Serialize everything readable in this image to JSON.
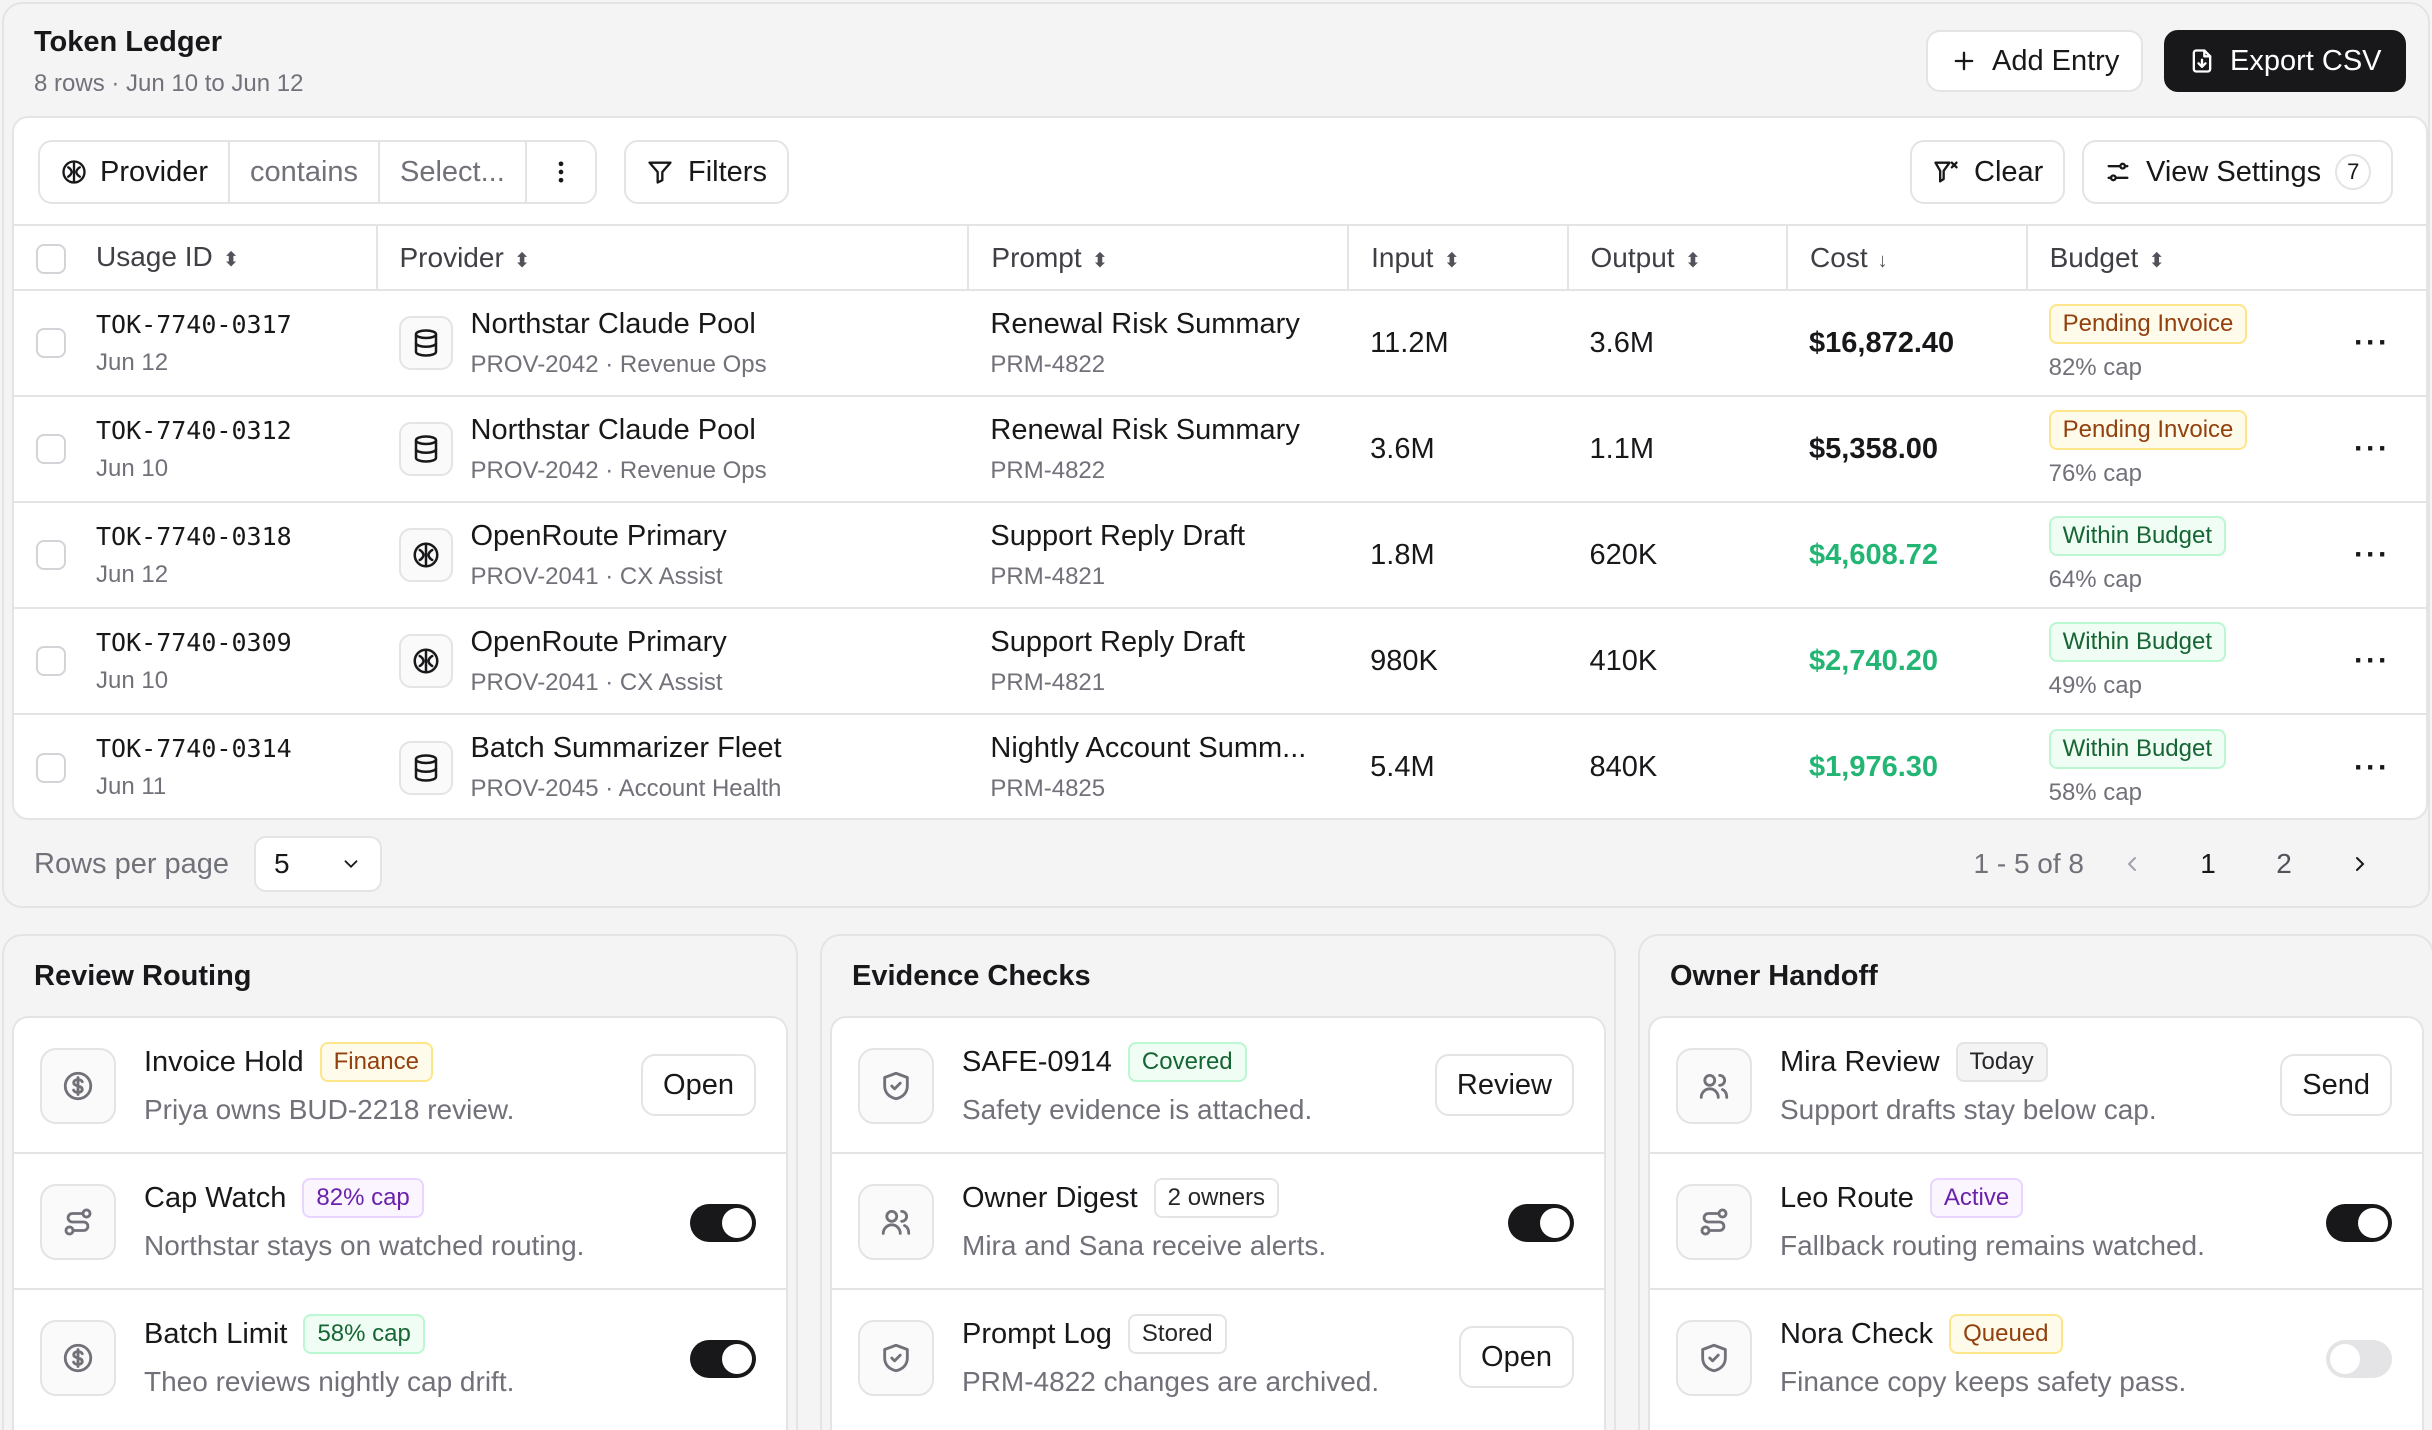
{
  "ledger": {
    "title": "Token Ledger",
    "subtitle": "8 rows · Jun 10 to Jun 12",
    "add_label": "Add Entry",
    "export_label": "Export CSV"
  },
  "toolbar": {
    "field": "Provider",
    "operator": "contains",
    "value_placeholder": "Select...",
    "filters_label": "Filters",
    "clear_label": "Clear",
    "view_settings_label": "View Settings",
    "view_settings_count": "7"
  },
  "table": {
    "headers": [
      "Usage ID",
      "Provider",
      "Prompt",
      "Input",
      "Output",
      "Cost",
      "Budget"
    ],
    "rows": [
      {
        "id": "TOK-7740-0317",
        "date": "Jun 12",
        "provider": "Northstar Claude Pool",
        "provider_sub": "PROV-2042 · Revenue Ops",
        "icon": "database-icon",
        "prompt": "Renewal Risk Summary",
        "prompt_id": "PRM-4822",
        "input": "11.2M",
        "output": "3.6M",
        "cost": "$16,872.40",
        "cost_color": "#18181b",
        "budget": "Pending Invoice",
        "budget_tone": "amber",
        "cap": "82% cap"
      },
      {
        "id": "TOK-7740-0312",
        "date": "Jun 10",
        "provider": "Northstar Claude Pool",
        "provider_sub": "PROV-2042 · Revenue Ops",
        "icon": "database-icon",
        "prompt": "Renewal Risk Summary",
        "prompt_id": "PRM-4822",
        "input": "3.6M",
        "output": "1.1M",
        "cost": "$5,358.00",
        "cost_color": "#18181b",
        "budget": "Pending Invoice",
        "budget_tone": "amber",
        "cap": "76% cap"
      },
      {
        "id": "TOK-7740-0318",
        "date": "Jun 12",
        "provider": "OpenRoute Primary",
        "provider_sub": "PROV-2041 · CX Assist",
        "icon": "brain-icon",
        "prompt": "Support Reply Draft",
        "prompt_id": "PRM-4821",
        "input": "1.8M",
        "output": "620K",
        "cost": "$4,608.72",
        "cost_color": "#22b573",
        "budget": "Within Budget",
        "budget_tone": "green",
        "cap": "64% cap"
      },
      {
        "id": "TOK-7740-0309",
        "date": "Jun 10",
        "provider": "OpenRoute Primary",
        "provider_sub": "PROV-2041 · CX Assist",
        "icon": "brain-icon",
        "prompt": "Support Reply Draft",
        "prompt_id": "PRM-4821",
        "input": "980K",
        "output": "410K",
        "cost": "$2,740.20",
        "cost_color": "#22b573",
        "budget": "Within Budget",
        "budget_tone": "green",
        "cap": "49% cap"
      },
      {
        "id": "TOK-7740-0314",
        "date": "Jun 11",
        "provider": "Batch Summarizer Fleet",
        "provider_sub": "PROV-2045 · Account Health",
        "icon": "database-icon",
        "prompt": "Nightly Account Summ...",
        "prompt_id": "PRM-4825",
        "input": "5.4M",
        "output": "840K",
        "cost": "$1,976.30",
        "cost_color": "#22b573",
        "budget": "Within Budget",
        "budget_tone": "green",
        "cap": "58% cap"
      }
    ]
  },
  "footer": {
    "rows_per_page_label": "Rows per page",
    "rows_per_page": "5",
    "range": "1 - 5 of 8",
    "pages": [
      "1",
      "2"
    ],
    "current_page": "1"
  },
  "panels": [
    {
      "title": "Review Routing",
      "rows": [
        {
          "icon": "dollar-icon",
          "title": "Invoice Hold",
          "badge": "Finance",
          "tone": "amber",
          "desc": "Priya owns BUD-2218 review.",
          "action": "button",
          "action_label": "Open"
        },
        {
          "icon": "route-icon",
          "title": "Cap Watch",
          "badge": "82% cap",
          "tone": "violet",
          "desc": "Northstar stays on watched routing.",
          "action": "toggle",
          "on": true
        },
        {
          "icon": "dollar-icon",
          "title": "Batch Limit",
          "badge": "58% cap",
          "tone": "green",
          "desc": "Theo reviews nightly cap drift.",
          "action": "toggle",
          "on": true
        }
      ]
    },
    {
      "title": "Evidence Checks",
      "rows": [
        {
          "icon": "shield-icon",
          "title": "SAFE-0914",
          "badge": "Covered",
          "tone": "green",
          "desc": "Safety evidence is attached.",
          "action": "button",
          "action_label": "Review"
        },
        {
          "icon": "users-icon",
          "title": "Owner Digest",
          "badge": "2 owners",
          "tone": "outline",
          "desc": "Mira and Sana receive alerts.",
          "action": "toggle",
          "on": true
        },
        {
          "icon": "shield-icon",
          "title": "Prompt Log",
          "badge": "Stored",
          "tone": "outline",
          "desc": "PRM-4822 changes are archived.",
          "action": "button",
          "action_label": "Open"
        }
      ]
    },
    {
      "title": "Owner Handoff",
      "rows": [
        {
          "icon": "users-icon",
          "title": "Mira Review",
          "badge": "Today",
          "tone": "gray",
          "desc": "Support drafts stay below cap.",
          "action": "button",
          "action_label": "Send"
        },
        {
          "icon": "route-icon",
          "title": "Leo Route",
          "badge": "Active",
          "tone": "violet",
          "desc": "Fallback routing remains watched.",
          "action": "toggle",
          "on": true
        },
        {
          "icon": "shield-icon",
          "title": "Nora Check",
          "badge": "Queued",
          "tone": "amber",
          "desc": "Finance copy keeps safety pass.",
          "action": "toggle",
          "on": false
        }
      ]
    }
  ]
}
